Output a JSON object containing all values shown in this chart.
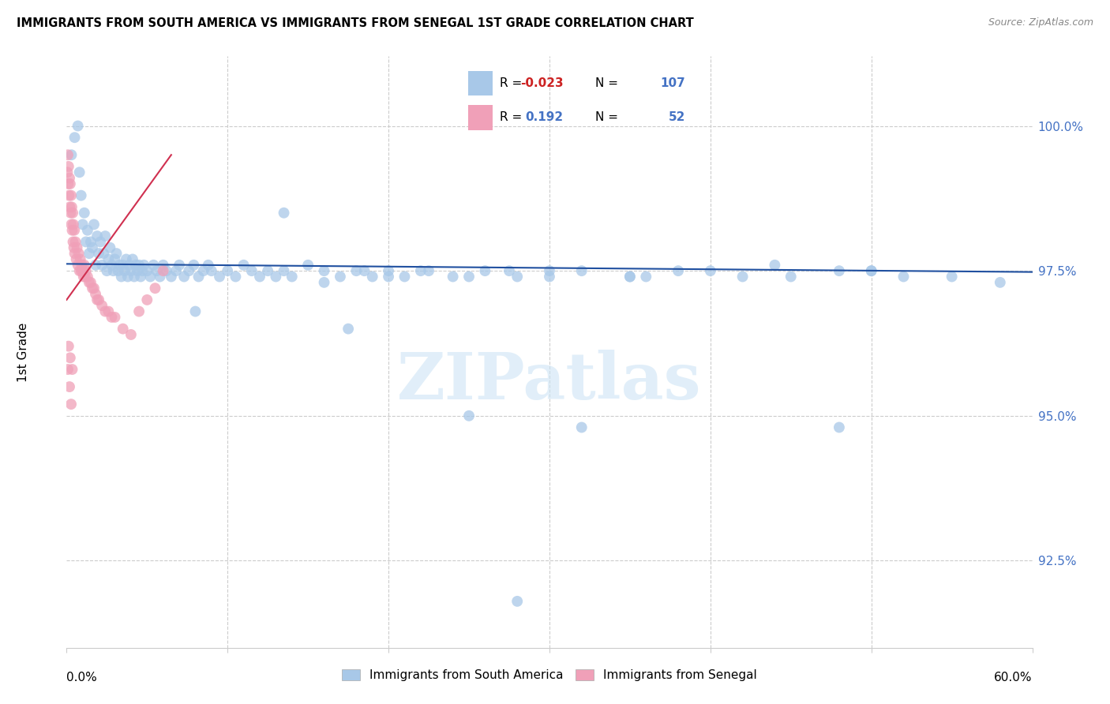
{
  "title": "IMMIGRANTS FROM SOUTH AMERICA VS IMMIGRANTS FROM SENEGAL 1ST GRADE CORRELATION CHART",
  "source": "Source: ZipAtlas.com",
  "ylabel": "1st Grade",
  "xmin": 0.0,
  "xmax": 60.0,
  "ymin": 91.0,
  "ymax": 101.2,
  "legend_blue_r": "-0.023",
  "legend_blue_n": "107",
  "legend_pink_r": "0.192",
  "legend_pink_n": "52",
  "legend_label_blue": "Immigrants from South America",
  "legend_label_pink": "Immigrants from Senegal",
  "blue_color": "#a8c8e8",
  "pink_color": "#f0a0b8",
  "blue_line_color": "#2050a0",
  "pink_line_color": "#d03050",
  "watermark": "ZIPatlas",
  "blue_scatter_x": [
    0.3,
    0.5,
    0.7,
    0.8,
    0.9,
    1.0,
    1.1,
    1.2,
    1.3,
    1.4,
    1.5,
    1.6,
    1.7,
    1.8,
    1.9,
    2.0,
    2.1,
    2.2,
    2.3,
    2.4,
    2.5,
    2.6,
    2.7,
    2.8,
    2.9,
    3.0,
    3.1,
    3.2,
    3.3,
    3.4,
    3.5,
    3.6,
    3.7,
    3.8,
    3.9,
    4.0,
    4.1,
    4.2,
    4.3,
    4.4,
    4.5,
    4.6,
    4.7,
    4.8,
    5.0,
    5.2,
    5.4,
    5.6,
    5.8,
    6.0,
    6.2,
    6.5,
    6.8,
    7.0,
    7.3,
    7.6,
    7.9,
    8.2,
    8.5,
    8.8,
    9.0,
    9.5,
    10.0,
    10.5,
    11.0,
    11.5,
    12.0,
    12.5,
    13.0,
    13.5,
    14.0,
    15.0,
    16.0,
    17.0,
    18.0,
    19.0,
    20.0,
    21.0,
    22.0,
    24.0,
    26.0,
    28.0,
    30.0,
    35.0,
    40.0,
    45.0,
    50.0,
    55.0,
    13.5,
    20.0,
    22.5,
    25.0,
    27.5,
    30.0,
    32.0,
    35.0,
    38.0,
    42.0,
    48.0,
    52.0,
    58.0,
    50.0,
    44.0,
    36.0,
    16.0,
    18.5
  ],
  "blue_scatter_y": [
    99.5,
    99.8,
    100.0,
    99.2,
    98.8,
    98.3,
    98.5,
    98.0,
    98.2,
    97.8,
    98.0,
    97.9,
    98.3,
    97.6,
    98.1,
    97.8,
    98.0,
    97.6,
    97.8,
    98.1,
    97.5,
    97.7,
    97.9,
    97.6,
    97.5,
    97.7,
    97.8,
    97.5,
    97.6,
    97.4,
    97.6,
    97.5,
    97.7,
    97.4,
    97.6,
    97.5,
    97.7,
    97.4,
    97.6,
    97.5,
    97.6,
    97.4,
    97.5,
    97.6,
    97.5,
    97.4,
    97.6,
    97.5,
    97.4,
    97.6,
    97.5,
    97.4,
    97.5,
    97.6,
    97.4,
    97.5,
    97.6,
    97.4,
    97.5,
    97.6,
    97.5,
    97.4,
    97.5,
    97.4,
    97.6,
    97.5,
    97.4,
    97.5,
    97.4,
    97.5,
    97.4,
    97.6,
    97.5,
    97.4,
    97.5,
    97.4,
    97.5,
    97.4,
    97.5,
    97.4,
    97.5,
    97.4,
    97.5,
    97.4,
    97.5,
    97.4,
    97.5,
    97.4,
    98.5,
    97.4,
    97.5,
    97.4,
    97.5,
    97.4,
    97.5,
    97.4,
    97.5,
    97.4,
    97.5,
    97.4,
    97.3,
    97.5,
    97.6,
    97.4,
    97.3,
    97.5
  ],
  "blue_outlier_x": [
    8.0,
    17.5,
    25.0,
    32.0,
    28.0,
    48.0
  ],
  "blue_outlier_y": [
    96.8,
    96.5,
    95.0,
    94.8,
    91.8,
    94.8
  ],
  "pink_scatter_x": [
    0.05,
    0.08,
    0.1,
    0.12,
    0.15,
    0.18,
    0.2,
    0.22,
    0.25,
    0.28,
    0.3,
    0.32,
    0.35,
    0.38,
    0.4,
    0.42,
    0.45,
    0.48,
    0.5,
    0.55,
    0.6,
    0.65,
    0.7,
    0.75,
    0.8,
    0.85,
    0.9,
    0.95,
    1.0,
    1.05,
    1.1,
    1.15,
    1.2,
    1.3,
    1.4,
    1.5,
    1.6,
    1.7,
    1.8,
    1.9,
    2.0,
    2.2,
    2.4,
    2.6,
    2.8,
    3.0,
    3.5,
    4.0,
    4.5,
    5.0,
    5.5,
    6.0
  ],
  "pink_scatter_y": [
    99.2,
    99.5,
    99.0,
    99.3,
    98.8,
    99.1,
    98.6,
    99.0,
    98.5,
    98.8,
    98.3,
    98.6,
    98.2,
    98.5,
    98.0,
    98.3,
    97.9,
    98.2,
    97.8,
    98.0,
    97.7,
    97.9,
    97.6,
    97.8,
    97.5,
    97.7,
    97.5,
    97.6,
    97.5,
    97.4,
    97.6,
    97.4,
    97.5,
    97.4,
    97.3,
    97.3,
    97.2,
    97.2,
    97.1,
    97.0,
    97.0,
    96.9,
    96.8,
    96.8,
    96.7,
    96.7,
    96.5,
    96.4,
    96.8,
    97.0,
    97.2,
    97.5
  ],
  "pink_low_x": [
    0.08,
    0.12,
    0.18,
    0.22,
    0.28,
    0.35
  ],
  "pink_low_y": [
    95.8,
    96.2,
    95.5,
    96.0,
    95.2,
    95.8
  ]
}
